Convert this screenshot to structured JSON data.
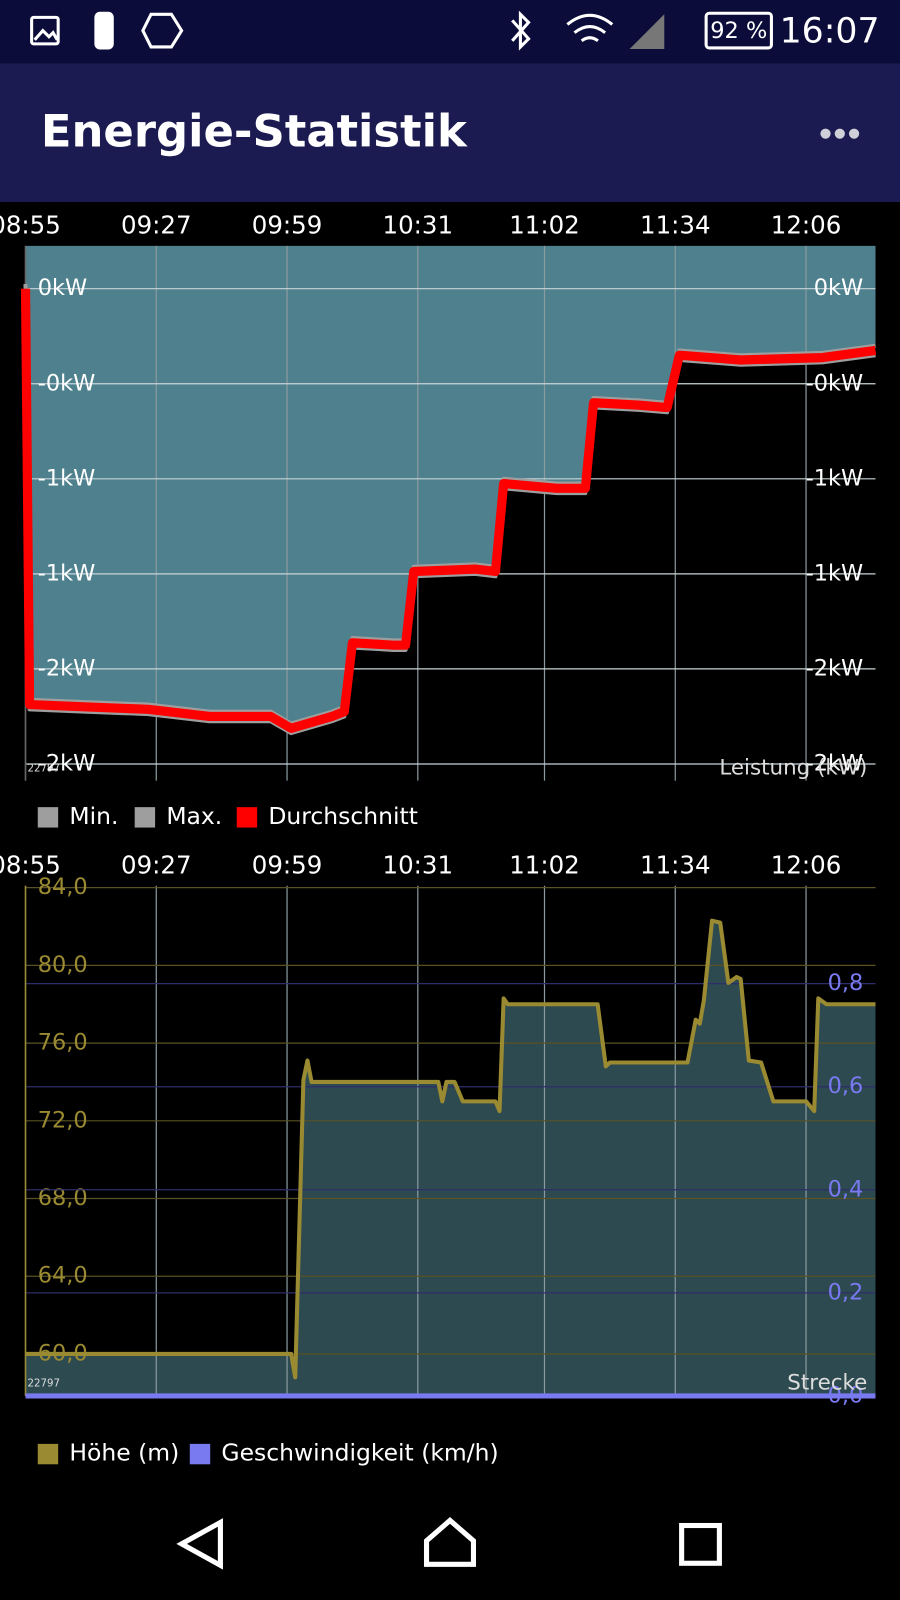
{
  "status_bar": {
    "battery": "92 %",
    "time": "16:07"
  },
  "app_bar": {
    "title": "Energie-Statistik"
  },
  "chart_data": [
    {
      "type": "line",
      "id_label": "22797",
      "axis_label": "Leistung (kW)",
      "xlim": [
        "08:55",
        "12:23"
      ],
      "xticks": [
        "08:55",
        "09:27",
        "09:59",
        "10:31",
        "11:02",
        "11:34",
        "12:06"
      ],
      "ylim": [
        -2.07,
        0.18
      ],
      "yticks": [
        {
          "value": 0,
          "label": "0kW"
        },
        {
          "value": -0.4,
          "label": "-0kW"
        },
        {
          "value": -0.8,
          "label": "-1kW"
        },
        {
          "value": -1.2,
          "label": "-1kW"
        },
        {
          "value": -1.6,
          "label": "-2kW"
        },
        {
          "value": -2.0,
          "label": "-2kW"
        }
      ],
      "grid": true,
      "series": [
        {
          "name": "Min.",
          "color": "#9e9e9e",
          "x": [
            "08:55",
            "08:56",
            "09:10",
            "09:25",
            "09:40",
            "09:55",
            "10:00",
            "10:10",
            "10:13",
            "10:15",
            "10:25",
            "10:28",
            "10:30",
            "10:45",
            "10:50",
            "10:52",
            "11:05",
            "11:12",
            "11:14",
            "11:25",
            "11:32",
            "11:35",
            "11:50",
            "12:10",
            "12:23"
          ],
          "values": [
            -0.02,
            -1.77,
            -1.78,
            -1.79,
            -1.82,
            -1.82,
            -1.87,
            -1.82,
            -1.8,
            -1.51,
            -1.52,
            -1.52,
            -1.21,
            -1.2,
            -1.21,
            -0.84,
            -0.86,
            -0.86,
            -0.5,
            -0.51,
            -0.52,
            -0.3,
            -0.32,
            -0.31,
            -0.28
          ]
        },
        {
          "name": "Max.",
          "color": "#9e9e9e",
          "fill": "#4e818d",
          "fill_to": "top",
          "x": [
            "08:55",
            "08:56",
            "09:10",
            "09:25",
            "09:40",
            "09:55",
            "10:00",
            "10:10",
            "10:13",
            "10:15",
            "10:25",
            "10:28",
            "10:30",
            "10:45",
            "10:50",
            "10:52",
            "11:05",
            "11:12",
            "11:14",
            "11:25",
            "11:32",
            "11:35",
            "11:50",
            "12:10",
            "12:23"
          ],
          "values": [
            0.02,
            -1.73,
            -1.74,
            -1.75,
            -1.78,
            -1.78,
            -1.83,
            -1.78,
            -1.76,
            -1.47,
            -1.48,
            -1.48,
            -1.17,
            -1.16,
            -1.17,
            -0.8,
            -0.82,
            -0.82,
            -0.46,
            -0.47,
            -0.48,
            -0.26,
            -0.28,
            -0.27,
            -0.24
          ]
        },
        {
          "name": "Durchschnitt",
          "color": "#ff0000",
          "x": [
            "08:55",
            "08:56",
            "09:10",
            "09:25",
            "09:40",
            "09:55",
            "10:00",
            "10:10",
            "10:13",
            "10:15",
            "10:25",
            "10:28",
            "10:30",
            "10:45",
            "10:50",
            "10:52",
            "11:05",
            "11:12",
            "11:14",
            "11:25",
            "11:32",
            "11:35",
            "11:50",
            "12:10",
            "12:23"
          ],
          "values": [
            0,
            -1.75,
            -1.76,
            -1.77,
            -1.8,
            -1.8,
            -1.85,
            -1.8,
            -1.78,
            -1.49,
            -1.5,
            -1.5,
            -1.19,
            -1.18,
            -1.19,
            -0.82,
            -0.84,
            -0.84,
            -0.48,
            -0.49,
            -0.5,
            -0.28,
            -0.3,
            -0.29,
            -0.26
          ]
        }
      ]
    },
    {
      "type": "line",
      "id_label": "22797",
      "axis_label": "Strecke",
      "xlim": [
        "08:55",
        "12:23"
      ],
      "xticks": [
        "08:55",
        "09:27",
        "09:59",
        "10:31",
        "11:02",
        "11:34",
        "12:06"
      ],
      "ylim": [
        57.84,
        84.1
      ],
      "yticks": [
        {
          "value": 60,
          "label": "60,0"
        },
        {
          "value": 64,
          "label": "64,0"
        },
        {
          "value": 68,
          "label": "68,0"
        },
        {
          "value": 72,
          "label": "72,0"
        },
        {
          "value": 76,
          "label": "76,0"
        },
        {
          "value": 80,
          "label": "80,0"
        },
        {
          "value": 84,
          "label": "84,0"
        }
      ],
      "y2lim": [
        0,
        0.99
      ],
      "y2ticks": [
        {
          "value": 0,
          "label": "0,0"
        },
        {
          "value": 0.2,
          "label": "0,2"
        },
        {
          "value": 0.4,
          "label": "0,4"
        },
        {
          "value": 0.6,
          "label": "0,6"
        },
        {
          "value": 0.8,
          "label": "0,8"
        }
      ],
      "grid": true,
      "series": [
        {
          "name": "Höhe (m)",
          "color": "#9a8a32",
          "fill": "#2c4a50",
          "fill_to": "bottom",
          "x": [
            "08:55",
            "10:00",
            "10:01",
            "10:03",
            "10:04",
            "10:05",
            "10:36",
            "10:37",
            "10:38",
            "10:40",
            "10:42",
            "10:50",
            "10:51",
            "10:52",
            "10:53",
            "11:15",
            "11:17",
            "11:18",
            "11:37",
            "11:39",
            "11:40",
            "11:41",
            "11:43",
            "11:45",
            "11:47",
            "11:49",
            "11:50",
            "11:52",
            "11:55",
            "11:58",
            "12:06",
            "12:08",
            "12:09",
            "12:11",
            "12:23"
          ],
          "values": [
            60,
            60,
            58.8,
            74.1,
            75.1,
            74,
            74,
            73,
            74,
            74,
            73,
            73,
            72.5,
            78.3,
            78,
            78,
            74.8,
            75,
            75,
            77.2,
            77,
            78.2,
            82.3,
            82.2,
            79.1,
            79.4,
            79.3,
            75.1,
            75,
            73,
            73,
            72.5,
            78.3,
            78,
            78
          ]
        },
        {
          "name": "Geschwindigkeit (km/h)",
          "color": "#7a7af0",
          "axis": "y2",
          "x": [
            "08:55",
            "12:23"
          ],
          "values": [
            0,
            0
          ]
        }
      ]
    }
  ]
}
